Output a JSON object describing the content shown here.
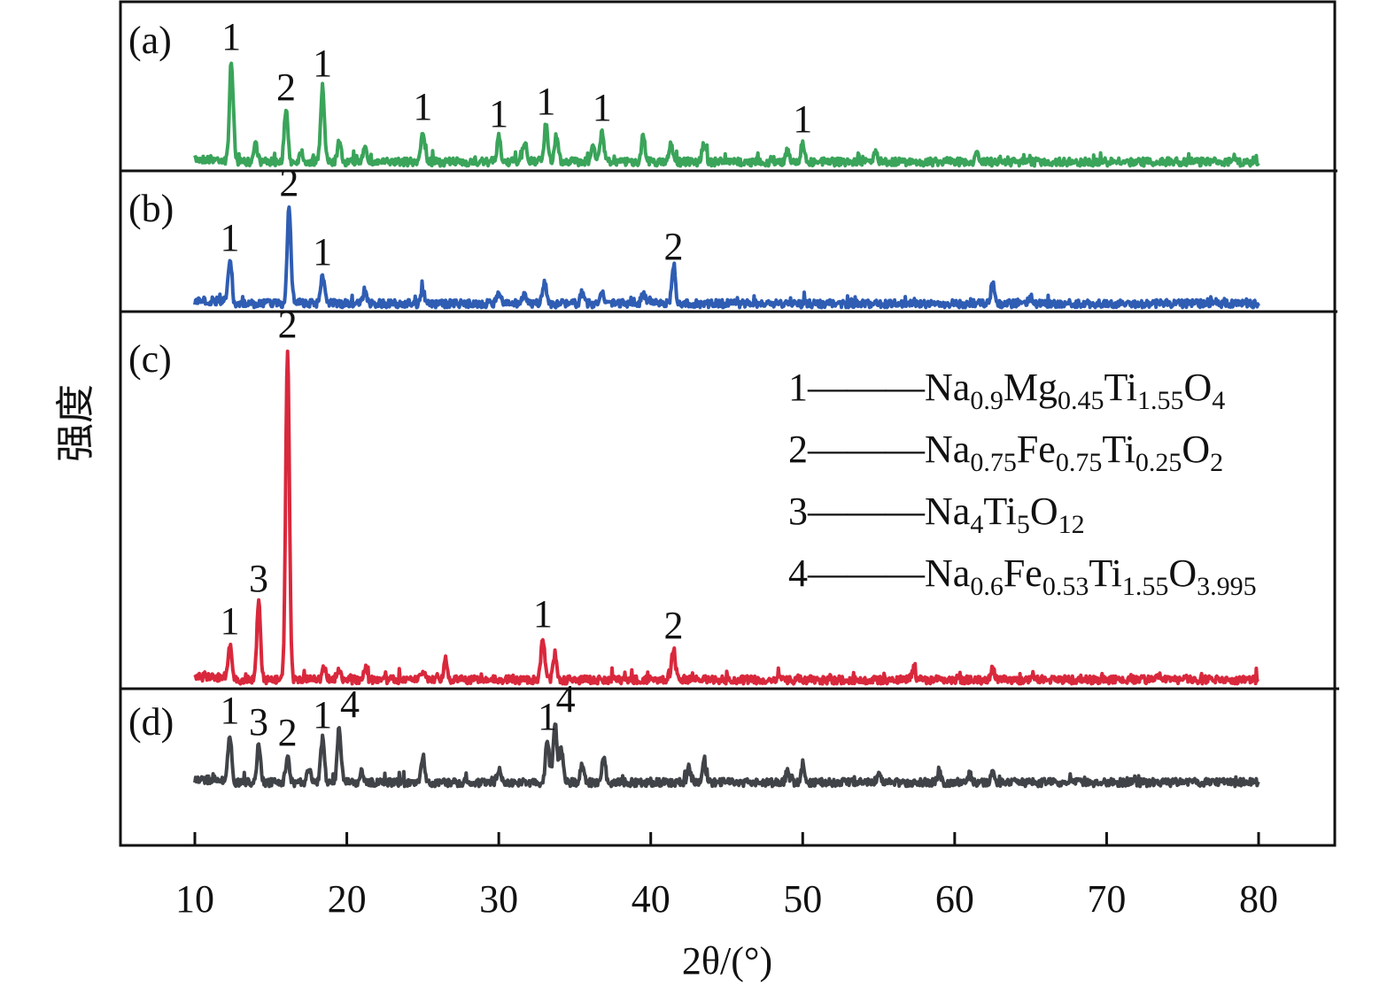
{
  "chart_data": {
    "type": "line",
    "xlabel": "2θ/(°)",
    "ylabel": "强度",
    "xlim": [
      5,
      85
    ],
    "xticks": [
      10,
      20,
      30,
      40,
      50,
      60,
      70,
      80
    ],
    "x_range_measured": [
      10,
      80
    ],
    "grid": false,
    "y_ticks_shown": false,
    "legend_position": "right, inside panel (c)",
    "legend": [
      {
        "key": "1",
        "formula": [
          [
            "Na",
            ""
          ],
          [
            "",
            "0.9"
          ],
          [
            "Mg",
            ""
          ],
          [
            "",
            "0.45"
          ],
          [
            "Ti",
            ""
          ],
          [
            "",
            "1.55"
          ],
          [
            "O",
            ""
          ],
          [
            "",
            "4"
          ]
        ]
      },
      {
        "key": "2",
        "formula": [
          [
            "Na",
            ""
          ],
          [
            "",
            "0.75"
          ],
          [
            "Fe",
            ""
          ],
          [
            "",
            "0.75"
          ],
          [
            "Ti",
            ""
          ],
          [
            "",
            "0.25"
          ],
          [
            "O",
            ""
          ],
          [
            "",
            "2"
          ]
        ]
      },
      {
        "key": "3",
        "formula": [
          [
            "Na",
            ""
          ],
          [
            "",
            "4"
          ],
          [
            "Ti",
            ""
          ],
          [
            "",
            "5"
          ],
          [
            "O",
            ""
          ],
          [
            "",
            "12"
          ]
        ]
      },
      {
        "key": "4",
        "formula": [
          [
            "Na",
            ""
          ],
          [
            "",
            "0.6"
          ],
          [
            "Fe",
            ""
          ],
          [
            "",
            "0.53"
          ],
          [
            "Ti",
            ""
          ],
          [
            "",
            "1.55"
          ],
          [
            "O",
            ""
          ],
          [
            "",
            "3.995"
          ]
        ]
      }
    ],
    "legend_text": [
      "Na0.9Mg0.45Ti1.55O4",
      "Na0.75Fe0.75Ti0.25O2",
      "Na4Ti5O12",
      "Na0.6Fe0.53Ti1.55O3.995"
    ],
    "series": [
      {
        "panel": "(a)",
        "color": "#3aa45a",
        "peaks": [
          [
            12.4,
            115
          ],
          [
            14.0,
            22
          ],
          [
            16.0,
            58
          ],
          [
            17.0,
            12
          ],
          [
            18.4,
            85
          ],
          [
            19.5,
            22
          ],
          [
            21.2,
            20
          ],
          [
            25.0,
            36
          ],
          [
            30.0,
            28
          ],
          [
            31.7,
            24
          ],
          [
            33.1,
            42
          ],
          [
            33.8,
            30
          ],
          [
            36.2,
            22
          ],
          [
            36.8,
            35
          ],
          [
            39.5,
            30
          ],
          [
            41.3,
            20
          ],
          [
            43.5,
            22
          ],
          [
            49.0,
            14
          ],
          [
            50.0,
            22
          ],
          [
            54.8,
            14
          ],
          [
            61.5,
            10
          ]
        ],
        "labels": [
          [
            "1",
            12.4
          ],
          [
            "2",
            16.0
          ],
          [
            "1",
            18.4
          ],
          [
            "1",
            25.0
          ],
          [
            "1",
            30.0
          ],
          [
            "1",
            33.1
          ],
          [
            "1",
            36.8
          ],
          [
            "1",
            50.0
          ]
        ]
      },
      {
        "panel": "(b)",
        "color": "#2f5db3",
        "peaks": [
          [
            12.3,
            48
          ],
          [
            16.2,
            110
          ],
          [
            18.4,
            32
          ],
          [
            21.2,
            12
          ],
          [
            25.0,
            14
          ],
          [
            30.0,
            14
          ],
          [
            31.7,
            14
          ],
          [
            33.0,
            25
          ],
          [
            35.5,
            12
          ],
          [
            36.8,
            16
          ],
          [
            39.5,
            12
          ],
          [
            41.5,
            38
          ],
          [
            62.5,
            22
          ],
          [
            65,
            8
          ]
        ],
        "labels": [
          [
            "1",
            12.3
          ],
          [
            "2",
            16.2
          ],
          [
            "1",
            18.4
          ],
          [
            "2",
            41.5
          ]
        ]
      },
      {
        "panel": "(c)",
        "color": "#d9283c",
        "peaks": [
          [
            12.3,
            40
          ],
          [
            14.2,
            88
          ],
          [
            16.1,
            375
          ],
          [
            18.5,
            14
          ],
          [
            19.5,
            10
          ],
          [
            21.2,
            14
          ],
          [
            25.0,
            10
          ],
          [
            26.5,
            24
          ],
          [
            32.9,
            48
          ],
          [
            33.7,
            30
          ],
          [
            41.5,
            35
          ],
          [
            57.3,
            12
          ],
          [
            62.5,
            14
          ],
          [
            73.5,
            6
          ]
        ],
        "labels": [
          [
            "1",
            12.3
          ],
          [
            "3",
            14.2
          ],
          [
            "2",
            16.1
          ],
          [
            "1",
            32.9
          ],
          [
            "2",
            41.5
          ]
        ]
      },
      {
        "panel": "(d)",
        "color": "#404347",
        "peaks": [
          [
            12.3,
            55
          ],
          [
            14.2,
            42
          ],
          [
            16.1,
            30
          ],
          [
            17.5,
            15
          ],
          [
            18.4,
            50
          ],
          [
            19.5,
            62
          ],
          [
            21.0,
            12
          ],
          [
            25.0,
            30
          ],
          [
            30.0,
            15
          ],
          [
            33.2,
            48
          ],
          [
            33.7,
            68
          ],
          [
            34.1,
            40
          ],
          [
            35.5,
            22
          ],
          [
            36.9,
            28
          ],
          [
            42.5,
            15
          ],
          [
            43.5,
            25
          ],
          [
            49.0,
            12
          ],
          [
            50.0,
            20
          ],
          [
            55,
            10
          ],
          [
            59,
            10
          ],
          [
            61,
            10
          ],
          [
            62.5,
            10
          ]
        ],
        "labels": [
          [
            "1",
            12.3
          ],
          [
            "3",
            14.2
          ],
          [
            "2",
            16.1
          ],
          [
            "1",
            18.4
          ],
          [
            "4",
            19.5
          ],
          [
            "1",
            33.2
          ],
          [
            "4",
            33.7
          ]
        ]
      }
    ]
  }
}
